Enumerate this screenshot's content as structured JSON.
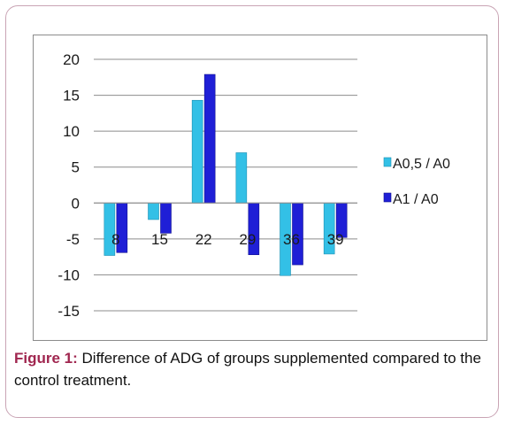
{
  "figure": {
    "caption_label": "Figure 1:",
    "caption_text": " Difference of ADG of groups supplemented compared to the control treatment."
  },
  "colors": {
    "series_1": "#33c0e6",
    "series_2": "#1f1fd6",
    "frame_border": "#c9a4b4",
    "caption_label": "#a0264f"
  },
  "chart_data": {
    "type": "bar",
    "title": "",
    "xlabel": "",
    "ylabel": "",
    "categories": [
      "8",
      "15",
      "22",
      "29",
      "36",
      "39"
    ],
    "series": [
      {
        "name": "A0,5 / A0",
        "values": [
          -7.3,
          -2.3,
          14.3,
          7.0,
          -10.1,
          -7.1
        ]
      },
      {
        "name": "A1 / A0",
        "values": [
          -6.9,
          -4.2,
          17.9,
          -7.2,
          -8.6,
          -4.8
        ]
      }
    ],
    "ylim": [
      -15,
      20
    ],
    "yticks": [
      20,
      15,
      10,
      5,
      0,
      -5,
      -10,
      -15
    ],
    "grid": true,
    "legend": "right"
  }
}
